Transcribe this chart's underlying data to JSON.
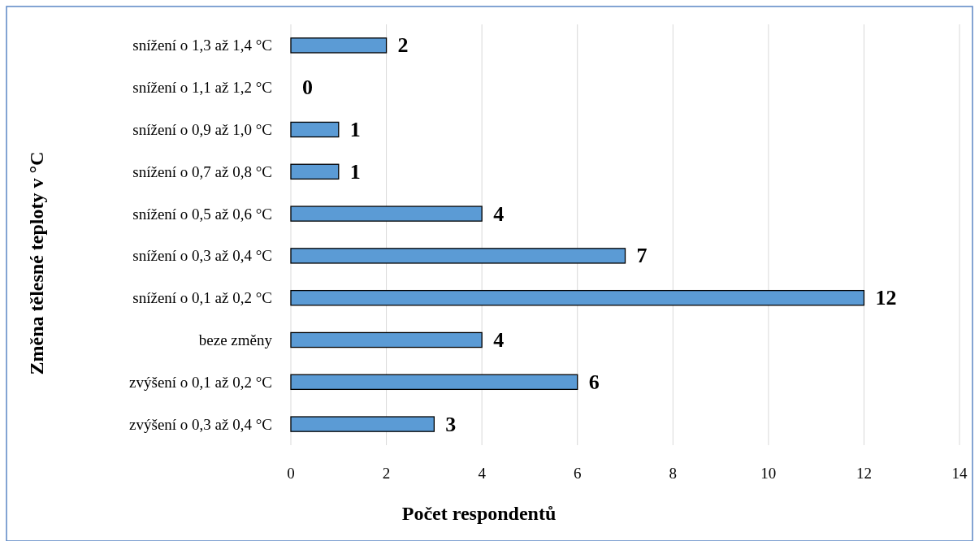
{
  "chart_data": {
    "type": "bar",
    "orientation": "horizontal",
    "xlabel": "Počet respondentů",
    "ylabel": "Změna tělesné teploty v °C",
    "categories": [
      "snížení o 1,3 až 1,4 °C",
      "snížení o 1,1 až 1,2 °C",
      "snížení o 0,9 až 1,0 °C",
      "snížení o 0,7 až 0,8 °C",
      "snížení o 0,5 až 0,6 °C",
      "snížení o 0,3 až 0,4 °C",
      "snížení o 0,1 až 0,2 °C",
      "beze změny",
      "zvýšení o 0,1 až 0,2 °C",
      "zvýšení o 0,3 až 0,4 °C"
    ],
    "values": [
      2,
      0,
      1,
      1,
      4,
      7,
      12,
      4,
      6,
      3
    ],
    "color": "#5b9bd5",
    "xlim": [
      0,
      14
    ],
    "xticks": [
      0,
      2,
      4,
      6,
      8,
      10,
      12,
      14
    ],
    "grid": "x",
    "data_labels": true
  }
}
